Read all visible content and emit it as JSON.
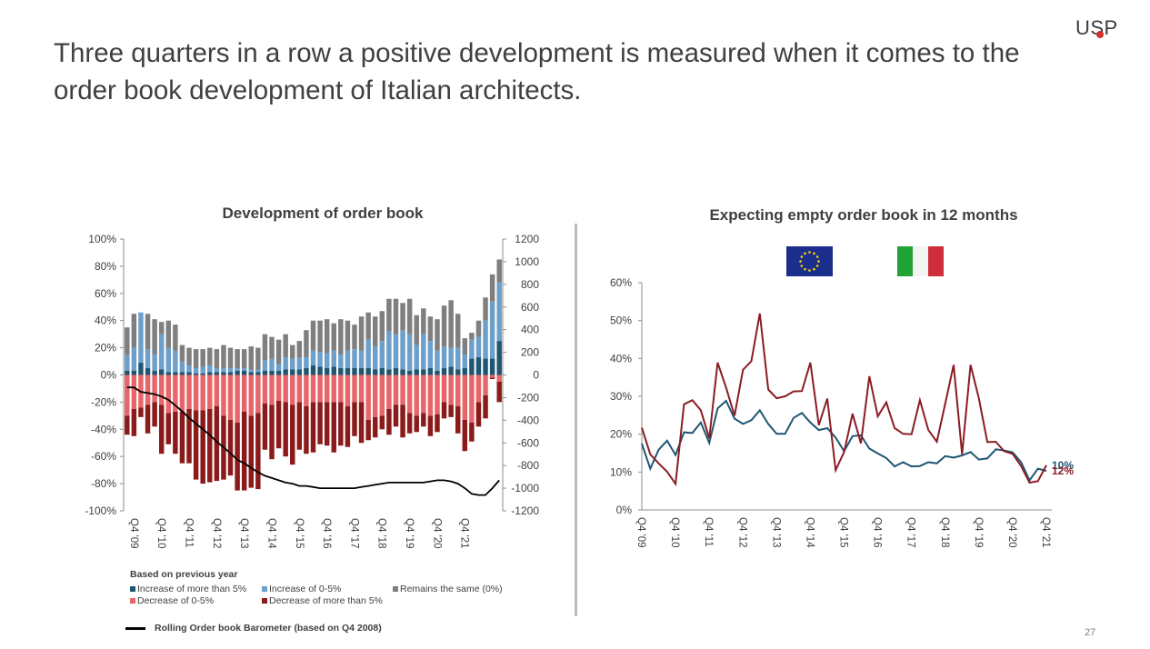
{
  "slide": {
    "headline": "Three quarters in a row a positive development is measured when it comes to the order book development of Italian architects.",
    "logo": "USP",
    "page_number": "27"
  },
  "legend": {
    "heading": "Based on previous year",
    "items": [
      {
        "label": "Increase of more than 5%",
        "color": "#1f5672"
      },
      {
        "label": "Increase of 0-5%",
        "color": "#6c9fc9"
      },
      {
        "label": "Remains the same  (0%)",
        "color": "#7f7f7f"
      },
      {
        "label": "Decrease of 0-5%",
        "color": "#e8666a"
      },
      {
        "label": "Decrease of more than 5%",
        "color": "#8b1a1a"
      }
    ],
    "barometer_label": "Rolling Order book Barometer (based on Q4 2008)"
  },
  "flags": {
    "eu": "eu-flag-icon",
    "italy": "italy-flag-icon"
  },
  "chart_data": [
    {
      "type": "bar",
      "stacked": true,
      "title": "Development of order book",
      "x_tick_labels": [
        "Q4 '09",
        "Q4 '10",
        "Q4 '11",
        "Q4 '12",
        "Q4 '13",
        "Q4 '14",
        "Q4 '15",
        "Q4 '16",
        "Q4 '17",
        "Q4 '18",
        "Q4 '19",
        "Q4 '20",
        "Q4 '21"
      ],
      "y_tick_labels": [
        "100%",
        "80%",
        "60%",
        "40%",
        "20%",
        "0%",
        "-20%",
        "-40%",
        "-60%",
        "-80%",
        "-100%"
      ],
      "ylim": [
        -100,
        100
      ],
      "y2_tick_labels": [
        "1200",
        "1000",
        "800",
        "600",
        "400",
        "200",
        "0",
        "-200",
        "-400",
        "-600",
        "-800",
        "-1000",
        "-1200"
      ],
      "y2lim": [
        -1200,
        1200
      ],
      "series": [
        {
          "name": "Increase of more than 5%",
          "color": "#1f5672",
          "values": [
            3,
            3,
            9,
            5,
            3,
            4,
            2,
            2,
            2,
            2,
            1,
            1,
            2,
            2,
            2,
            2,
            3,
            3,
            2,
            2,
            3,
            3,
            3,
            4,
            4,
            4,
            5,
            7,
            6,
            5,
            6,
            5,
            5,
            5,
            5,
            5,
            4,
            5,
            4,
            5,
            4,
            3,
            4,
            4,
            5,
            3,
            5,
            6,
            4,
            5,
            12,
            13,
            12,
            12,
            25
          ]
        },
        {
          "name": "Increase of 0-5%",
          "color": "#6c9fc9",
          "values": [
            12,
            17,
            37,
            14,
            12,
            26,
            18,
            16,
            8,
            5,
            4,
            5,
            5,
            3,
            3,
            3,
            2,
            2,
            2,
            2,
            8,
            9,
            5,
            9,
            8,
            9,
            8,
            11,
            11,
            11,
            12,
            10,
            13,
            14,
            13,
            21,
            17,
            20,
            28,
            25,
            29,
            27,
            18,
            26,
            20,
            15,
            16,
            14,
            16,
            10,
            14,
            15,
            28,
            42,
            43
          ]
        },
        {
          "name": "Remains the same  (0%)",
          "color": "#7f7f7f",
          "values": [
            20,
            25,
            0,
            26,
            26,
            9,
            20,
            19,
            12,
            13,
            14,
            13,
            13,
            14,
            17,
            15,
            14,
            14,
            17,
            16,
            19,
            16,
            18,
            17,
            10,
            12,
            20,
            22,
            23,
            25,
            20,
            26,
            22,
            18,
            25,
            20,
            22,
            22,
            24,
            26,
            20,
            26,
            22,
            19,
            18,
            23,
            30,
            35,
            25,
            12,
            5,
            12,
            17,
            20,
            17
          ]
        },
        {
          "name": "Decrease of 0-5%",
          "color": "#e8666a",
          "values": [
            -30,
            -25,
            -24,
            -22,
            -20,
            -22,
            -28,
            -27,
            -27,
            -25,
            -26,
            -26,
            -25,
            -23,
            -30,
            -33,
            -35,
            -27,
            -30,
            -28,
            -21,
            -22,
            -19,
            -20,
            -22,
            -20,
            -23,
            -20,
            -20,
            -20,
            -20,
            -20,
            -23,
            -20,
            -20,
            -33,
            -31,
            -30,
            -25,
            -22,
            -22,
            -28,
            -30,
            -28,
            -30,
            -29,
            -20,
            -22,
            -23,
            -33,
            -35,
            -20,
            -15,
            -2,
            -5
          ]
        },
        {
          "name": "Decrease of more than 5%",
          "color": "#8b1a1a",
          "values": [
            -14,
            -20,
            -7,
            -21,
            -18,
            -36,
            -23,
            -31,
            -38,
            -40,
            -51,
            -54,
            -54,
            -55,
            -47,
            -41,
            -50,
            -58,
            -53,
            -56,
            -34,
            -40,
            -35,
            -40,
            -44,
            -35,
            -35,
            -37,
            -31,
            -32,
            -37,
            -32,
            -30,
            -25,
            -30,
            -15,
            -15,
            -10,
            -19,
            -16,
            -24,
            -15,
            -12,
            -10,
            -15,
            -13,
            -12,
            -9,
            -20,
            -23,
            -14,
            -18,
            -17,
            -1,
            -15
          ]
        }
      ],
      "barometer": {
        "name": "Rolling Order book Barometer (based on Q4 2008)",
        "color": "#000000",
        "values": [
          -110,
          -110,
          -150,
          -160,
          -170,
          -190,
          -220,
          -270,
          -320,
          -380,
          -430,
          -480,
          -530,
          -590,
          -640,
          -690,
          -750,
          -780,
          -820,
          -860,
          -890,
          -910,
          -930,
          -950,
          -960,
          -980,
          -980,
          -990,
          -1000,
          -1000,
          -1000,
          -1000,
          -1000,
          -1000,
          -990,
          -980,
          -970,
          -960,
          -950,
          -950,
          -950,
          -950,
          -950,
          -950,
          -940,
          -930,
          -930,
          -940,
          -960,
          -1000,
          -1050,
          -1060,
          -1060,
          -1000,
          -930
        ]
      }
    },
    {
      "type": "line",
      "title": "Expecting empty order book in 12 months",
      "x_tick_labels": [
        "Q4 '09",
        "Q4 '10",
        "Q4 '11",
        "Q4 '12",
        "Q4 '13",
        "Q4 '14",
        "Q4 '15",
        "Q4 '16",
        "Q4 '17",
        "Q4 '18",
        "Q4 '19",
        "Q4 '20",
        "Q4 '21"
      ],
      "y_tick_labels": [
        "60%",
        "50%",
        "40%",
        "30%",
        "20%",
        "10%",
        "0%"
      ],
      "ylim": [
        0,
        60
      ],
      "series": [
        {
          "name": "EU",
          "color": "#1f5672",
          "end_label": "10%",
          "values": [
            17.5,
            10.9,
            15.9,
            18.3,
            14.5,
            20.5,
            20.3,
            23.1,
            17.7,
            26.8,
            28.8,
            24.1,
            22.7,
            23.7,
            26.3,
            22.7,
            20.1,
            20.1,
            24.3,
            25.6,
            23.1,
            21.1,
            21.6,
            19.1,
            15.5,
            19.5,
            19.7,
            16.2,
            14.9,
            13.7,
            11.5,
            12.6,
            11.5,
            11.6,
            12.6,
            12.3,
            14.2,
            13.8,
            14.4,
            15.3,
            13.3,
            13.6,
            16.0,
            15.7,
            15.2,
            12.6,
            7.8,
            10.9,
            10.3
          ]
        },
        {
          "name": "Italy",
          "color": "#8b1c24",
          "end_label": "12%",
          "values": [
            21.7,
            14.7,
            12.3,
            10.1,
            6.9,
            27.9,
            29.0,
            26.3,
            18.9,
            38.9,
            32.3,
            24.9,
            37.0,
            39.3,
            51.9,
            31.8,
            29.5,
            30.0,
            31.3,
            31.4,
            38.9,
            22.4,
            29.4,
            10.5,
            15.3,
            25.4,
            17.6,
            35.3,
            24.7,
            28.4,
            21.6,
            20.1,
            20.0,
            29.0,
            21.1,
            18.0,
            28.1,
            38.3,
            14.7,
            38.3,
            29.4,
            17.9,
            18.0,
            15.5,
            14.8,
            11.6,
            7.2,
            7.6,
            11.8
          ]
        }
      ]
    }
  ]
}
